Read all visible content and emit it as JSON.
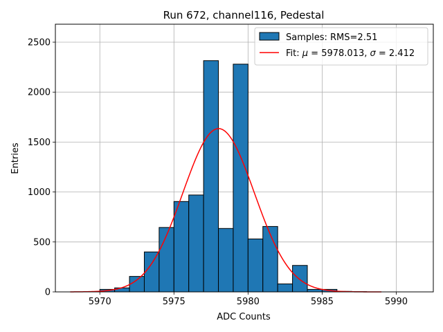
{
  "chart_data": {
    "type": "bar",
    "title": "Run 672, channel116, Pedestal",
    "xlabel": "ADC Counts",
    "ylabel": "Entries",
    "xlim": [
      5967,
      5992.5
    ],
    "ylim": [
      0,
      2680
    ],
    "grid": true,
    "legend_position": "top-right",
    "x_ticks": [
      5970,
      5975,
      5980,
      5985,
      5990
    ],
    "y_ticks": [
      0,
      500,
      1000,
      1500,
      2000,
      2500
    ],
    "x_tick_labels": [
      "5970",
      "5975",
      "5980",
      "5985",
      "5990"
    ],
    "y_tick_labels": [
      "0",
      "500",
      "1000",
      "1500",
      "2000",
      "2500"
    ],
    "histogram": {
      "name": "Samples: RMS=2.51",
      "color": "#1f77b4",
      "bins": [
        {
          "start": 5970,
          "end": 5971,
          "value": 25
        },
        {
          "start": 5971,
          "end": 5972,
          "value": 40
        },
        {
          "start": 5972,
          "end": 5973,
          "value": 155
        },
        {
          "start": 5973,
          "end": 5974,
          "value": 400
        },
        {
          "start": 5974,
          "end": 5975,
          "value": 645
        },
        {
          "start": 5975,
          "end": 5976,
          "value": 905
        },
        {
          "start": 5976,
          "end": 5977,
          "value": 970
        },
        {
          "start": 5977,
          "end": 5978,
          "value": 2315
        },
        {
          "start": 5978,
          "end": 5979,
          "value": 635
        },
        {
          "start": 5979,
          "end": 5980,
          "value": 2280
        },
        {
          "start": 5980,
          "end": 5981,
          "value": 530
        },
        {
          "start": 5981,
          "end": 5982,
          "value": 655
        },
        {
          "start": 5982,
          "end": 5983,
          "value": 80
        },
        {
          "start": 5983,
          "end": 5984,
          "value": 265
        },
        {
          "start": 5984,
          "end": 5985,
          "value": 25
        },
        {
          "start": 5985,
          "end": 5986,
          "value": 25
        },
        {
          "start": 5986,
          "end": 5987,
          "value": 5
        },
        {
          "start": 5987,
          "end": 5988,
          "value": 2
        }
      ]
    },
    "fit": {
      "name_prefix": "Fit: ",
      "mu_symbol": "μ",
      "mu_text": " = 5978.013, ",
      "sigma_symbol": "σ",
      "sigma_text": " = 2.412",
      "mu": 5978.013,
      "sigma": 2.412,
      "amplitude": 1635,
      "x_range": [
        5968,
        5989
      ],
      "color": "#ff0000"
    }
  }
}
